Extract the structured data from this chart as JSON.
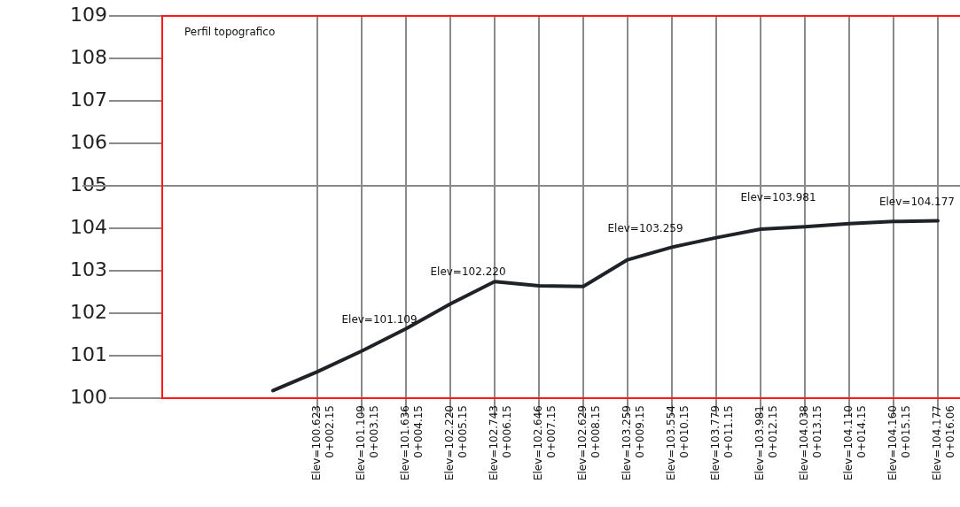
{
  "chart_data": {
    "type": "line",
    "title": "Perfil topografico",
    "categories": [
      null,
      null,
      null,
      "Elev=100.623\n0+002.15",
      "Elev=101.109\n0+003.15",
      "Elev=101.636\n0+004.15",
      "Elev=102.220\n0+005.15",
      "Elev=102.743\n0+006.15",
      "Elev=102.646\n0+007.15",
      "Elev=102.629\n0+008.15",
      "Elev=103.259\n0+009.15",
      "Elev=103.554\n0+010.15",
      "Elev=103.779\n0+011.15",
      "Elev=103.981\n0+012.15",
      "Elev=104.038\n0+013.15",
      "Elev=104.110\n0+014.15",
      "Elev=104.160\n0+015.15",
      "Elev=104.177\n0+016.06"
    ],
    "series": [
      {
        "color": "#1f2328",
        "values": [
          null,
          null,
          100.18,
          100.623,
          101.109,
          101.636,
          102.22,
          102.743,
          102.646,
          102.629,
          103.259,
          103.554,
          103.779,
          103.981,
          104.038,
          104.11,
          104.16,
          104.177
        ]
      }
    ],
    "ylim": [
      100,
      109
    ],
    "yticks": [
      100,
      101,
      102,
      103,
      104,
      105,
      106,
      107,
      108,
      109
    ],
    "grid": "x",
    "marker": "none",
    "line_style": "solid",
    "ref_lines": [
      {
        "axis": "y",
        "value": 105,
        "color": "#888888"
      }
    ],
    "annotations": [
      {
        "text": "Elev=101.109",
        "x": "Elev=101.109\n0+003.15",
        "y": 101.109
      },
      {
        "text": "Elev=102.220",
        "x": "Elev=102.220\n0+005.15",
        "y": 102.22
      },
      {
        "text": "Elev=103.259",
        "x": "Elev=103.259\n0+009.15",
        "y": 103.259
      },
      {
        "text": "Elev=103.981",
        "x": "Elev=103.981\n0+012.15",
        "y": 103.981
      },
      "Elev=104.177"
    ]
  }
}
